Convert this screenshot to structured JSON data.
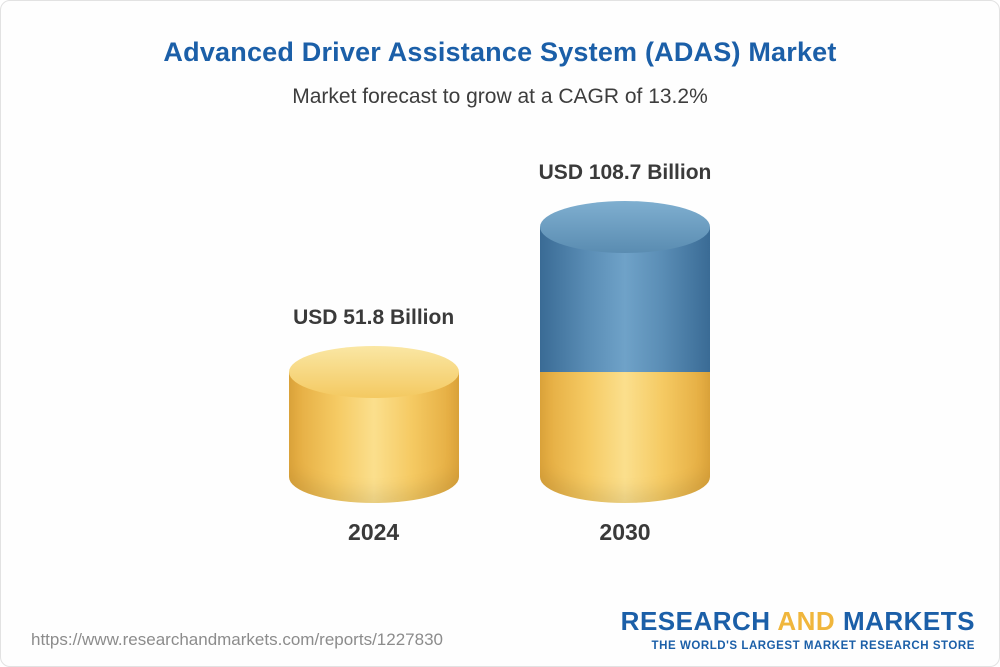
{
  "header": {
    "title": "Advanced Driver Assistance System (ADAS) Market",
    "subtitle": "Market forecast to grow at a CAGR of 13.2%"
  },
  "chart_data": {
    "type": "bar",
    "variant": "3d-cylinder-stacked",
    "title": "Advanced Driver Assistance System (ADAS) Market",
    "subtitle": "Market forecast to grow at a CAGR of 13.2%",
    "categories": [
      "2024",
      "2030"
    ],
    "values": [
      51.8,
      108.7
    ],
    "unit": "USD Billion",
    "cagr": "13.2%",
    "data_labels": [
      "USD 51.8 Billion",
      "USD 108.7 Billion"
    ],
    "segments": [
      [
        {
          "color": "gold",
          "value": 51.8
        }
      ],
      [
        {
          "color": "gold",
          "value": 51.8
        },
        {
          "color": "blue",
          "value": 56.9
        }
      ]
    ],
    "colors": {
      "gold": {
        "edge": "#E2A83C",
        "mid": "#F5CA63",
        "light": "#FBDF8D",
        "cap_light": "#FAE7A4",
        "cap_dark": "#F4C961"
      },
      "blue": {
        "edge": "#3A6B95",
        "mid": "#5A8DB5",
        "light": "#6FA2C8",
        "cap_light": "#7FAFD0",
        "cap_dark": "#5A8CB1"
      }
    },
    "legend": false,
    "grid": false,
    "axes": false,
    "ylim": [
      0,
      120
    ]
  },
  "footer": {
    "url": "https://www.researchandmarkets.com/reports/1227830",
    "logo": {
      "word1": "RESEARCH",
      "word2": "AND",
      "word3": "MARKETS",
      "tagline": "THE WORLD'S LARGEST MARKET RESEARCH STORE",
      "brand_blue": "#1B5FA8",
      "brand_gold": "#F0B63C"
    }
  },
  "style": {
    "title_color": "#1B5FA8",
    "text_color": "#3A3A3A",
    "url_color": "#8C8C8C",
    "background": "#FEFEFE"
  }
}
